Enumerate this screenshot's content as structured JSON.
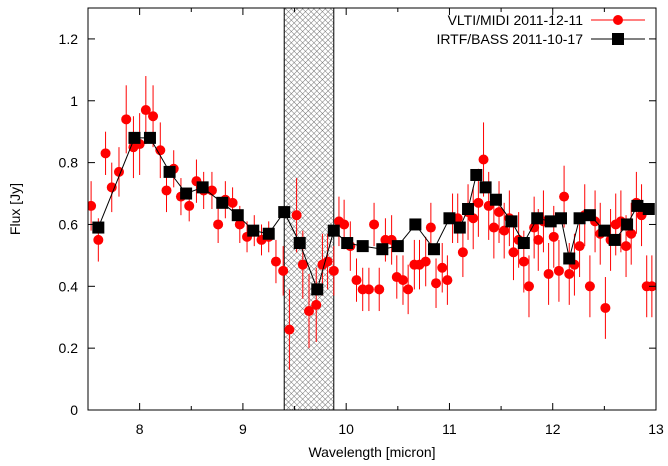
{
  "chart_data": {
    "type": "scatter",
    "title": "",
    "xlabel": "Wavelength [micron]",
    "ylabel": "Flux [Jy]",
    "xlim": [
      7.5,
      13
    ],
    "ylim": [
      0,
      1.3
    ],
    "xticks": [
      8,
      9,
      10,
      11,
      12,
      13
    ],
    "yticks": [
      0,
      0.2,
      0.4,
      0.6,
      0.8,
      1,
      1.2
    ],
    "grid": false,
    "legend_position": "top-right",
    "shaded_band": [
      9.4,
      9.88
    ],
    "series": [
      {
        "name": "VLTI/MIDI 2011-12-11",
        "marker": "circle",
        "color": "#ff0000",
        "line": "none",
        "error_bars": true,
        "points": [
          [
            7.53,
            0.66,
            0.08
          ],
          [
            7.6,
            0.55,
            0.07
          ],
          [
            7.67,
            0.83,
            0.07
          ],
          [
            7.73,
            0.72,
            0.08
          ],
          [
            7.8,
            0.77,
            0.08
          ],
          [
            7.87,
            0.94,
            0.11
          ],
          [
            7.94,
            0.85,
            0.1
          ],
          [
            8.0,
            0.86,
            0.1
          ],
          [
            8.06,
            0.97,
            0.11
          ],
          [
            8.13,
            0.95,
            0.1
          ],
          [
            8.2,
            0.84,
            0.09
          ],
          [
            8.26,
            0.71,
            0.07
          ],
          [
            8.33,
            0.78,
            0.06
          ],
          [
            8.4,
            0.69,
            0.06
          ],
          [
            8.48,
            0.66,
            0.05
          ],
          [
            8.55,
            0.74,
            0.07
          ],
          [
            8.62,
            0.71,
            0.06
          ],
          [
            8.7,
            0.71,
            0.06
          ],
          [
            8.76,
            0.6,
            0.06
          ],
          [
            8.83,
            0.68,
            0.06
          ],
          [
            8.9,
            0.67,
            0.05
          ],
          [
            8.97,
            0.6,
            0.06
          ],
          [
            9.04,
            0.56,
            0.05
          ],
          [
            9.11,
            0.58,
            0.05
          ],
          [
            9.18,
            0.55,
            0.05
          ],
          [
            9.25,
            0.56,
            0.05
          ],
          [
            9.32,
            0.48,
            0.07
          ],
          [
            9.39,
            0.45,
            0.08
          ],
          [
            9.45,
            0.26,
            0.13
          ],
          [
            9.52,
            0.63,
            0.12
          ],
          [
            9.58,
            0.47,
            0.11
          ],
          [
            9.64,
            0.32,
            0.12
          ],
          [
            9.71,
            0.34,
            0.12
          ],
          [
            9.77,
            0.47,
            0.1
          ],
          [
            9.82,
            0.48,
            0.09
          ],
          [
            9.88,
            0.45,
            0.08
          ],
          [
            9.93,
            0.61,
            0.08
          ],
          [
            9.98,
            0.6,
            0.08
          ],
          [
            10.04,
            0.53,
            0.08
          ],
          [
            10.1,
            0.42,
            0.07
          ],
          [
            10.16,
            0.39,
            0.07
          ],
          [
            10.22,
            0.39,
            0.07
          ],
          [
            10.27,
            0.6,
            0.07
          ],
          [
            10.32,
            0.39,
            0.07
          ],
          [
            10.38,
            0.55,
            0.07
          ],
          [
            10.44,
            0.55,
            0.08
          ],
          [
            10.49,
            0.43,
            0.07
          ],
          [
            10.55,
            0.42,
            0.08
          ],
          [
            10.6,
            0.39,
            0.08
          ],
          [
            10.66,
            0.47,
            0.08
          ],
          [
            10.71,
            0.47,
            0.08
          ],
          [
            10.77,
            0.48,
            0.08
          ],
          [
            10.82,
            0.59,
            0.08
          ],
          [
            10.87,
            0.41,
            0.08
          ],
          [
            10.93,
            0.46,
            0.08
          ],
          [
            10.98,
            0.42,
            0.08
          ],
          [
            11.03,
            0.62,
            0.08
          ],
          [
            11.08,
            0.62,
            0.08
          ],
          [
            11.13,
            0.51,
            0.08
          ],
          [
            11.18,
            0.64,
            0.09
          ],
          [
            11.23,
            0.62,
            0.1
          ],
          [
            11.28,
            0.67,
            0.11
          ],
          [
            11.33,
            0.81,
            0.12
          ],
          [
            11.38,
            0.66,
            0.11
          ],
          [
            11.43,
            0.59,
            0.1
          ],
          [
            11.48,
            0.64,
            0.1
          ],
          [
            11.53,
            0.58,
            0.09
          ],
          [
            11.58,
            0.62,
            0.09
          ],
          [
            11.62,
            0.51,
            0.09
          ],
          [
            11.67,
            0.55,
            0.09
          ],
          [
            11.72,
            0.48,
            0.1
          ],
          [
            11.77,
            0.4,
            0.1
          ],
          [
            11.82,
            0.59,
            0.1
          ],
          [
            11.86,
            0.55,
            0.1
          ],
          [
            11.91,
            0.61,
            0.1
          ],
          [
            11.96,
            0.44,
            0.1
          ],
          [
            12.01,
            0.56,
            0.1
          ],
          [
            12.06,
            0.45,
            0.1
          ],
          [
            12.11,
            0.69,
            0.1
          ],
          [
            12.16,
            0.44,
            0.1
          ],
          [
            12.21,
            0.47,
            0.1
          ],
          [
            12.26,
            0.53,
            0.1
          ],
          [
            12.31,
            0.63,
            0.1
          ],
          [
            12.36,
            0.4,
            0.1
          ],
          [
            12.41,
            0.61,
            0.1
          ],
          [
            12.46,
            0.57,
            0.1
          ],
          [
            12.51,
            0.33,
            0.1
          ],
          [
            12.56,
            0.55,
            0.1
          ],
          [
            12.61,
            0.6,
            0.1
          ],
          [
            12.66,
            0.61,
            0.1
          ],
          [
            12.71,
            0.53,
            0.1
          ],
          [
            12.76,
            0.57,
            0.1
          ],
          [
            12.81,
            0.67,
            0.1
          ],
          [
            12.86,
            0.63,
            0.1
          ],
          [
            12.91,
            0.4,
            0.1
          ],
          [
            12.96,
            0.4,
            0.1
          ]
        ]
      },
      {
        "name": "IRTF/BASS 2011-10-17",
        "marker": "square",
        "color": "#000000",
        "line": "solid",
        "error_bars": false,
        "points": [
          [
            7.6,
            0.59
          ],
          [
            7.95,
            0.88
          ],
          [
            8.1,
            0.88
          ],
          [
            8.29,
            0.77
          ],
          [
            8.45,
            0.7
          ],
          [
            8.61,
            0.72
          ],
          [
            8.8,
            0.67
          ],
          [
            8.95,
            0.63
          ],
          [
            9.1,
            0.58
          ],
          [
            9.25,
            0.57
          ],
          [
            9.4,
            0.64
          ],
          [
            9.55,
            0.54
          ],
          [
            9.72,
            0.39
          ],
          [
            9.88,
            0.58
          ],
          [
            10.01,
            0.54
          ],
          [
            10.16,
            0.53
          ],
          [
            10.35,
            0.52
          ],
          [
            10.5,
            0.53
          ],
          [
            10.67,
            0.6
          ],
          [
            10.85,
            0.52
          ],
          [
            11.0,
            0.62
          ],
          [
            11.1,
            0.59
          ],
          [
            11.18,
            0.65
          ],
          [
            11.26,
            0.76
          ],
          [
            11.35,
            0.72
          ],
          [
            11.45,
            0.68
          ],
          [
            11.6,
            0.61
          ],
          [
            11.72,
            0.54
          ],
          [
            11.85,
            0.62
          ],
          [
            11.98,
            0.61
          ],
          [
            12.08,
            0.62
          ],
          [
            12.16,
            0.49
          ],
          [
            12.26,
            0.62
          ],
          [
            12.36,
            0.63
          ],
          [
            12.5,
            0.58
          ],
          [
            12.6,
            0.55
          ],
          [
            12.72,
            0.6
          ],
          [
            12.82,
            0.66
          ],
          [
            12.93,
            0.65
          ]
        ]
      }
    ]
  }
}
